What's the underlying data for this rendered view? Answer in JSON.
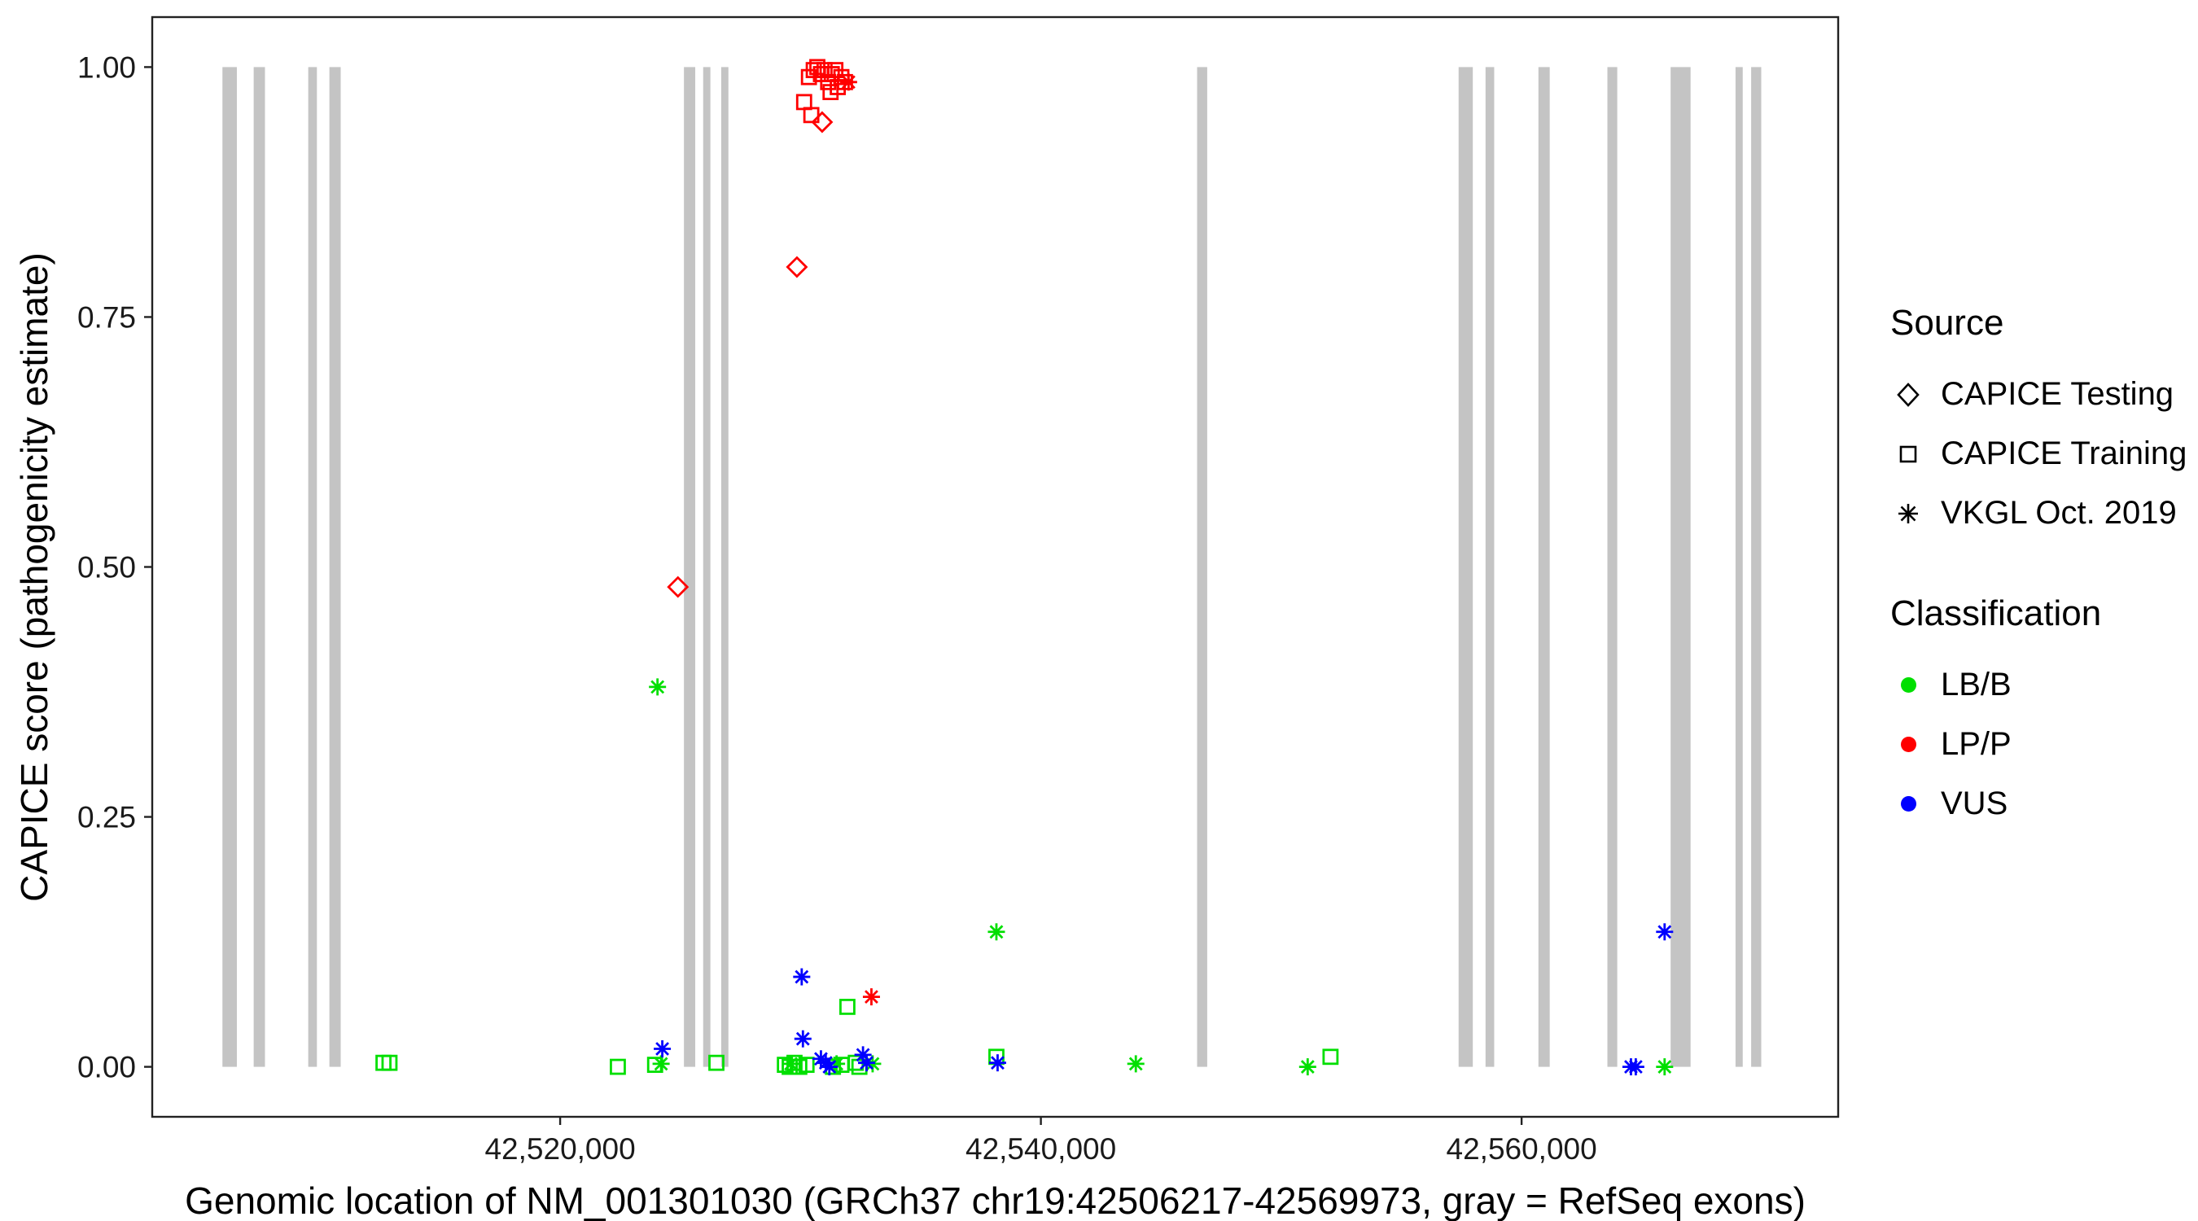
{
  "colors": {
    "lbb_green": "#00DF00",
    "lpp_red": "#FF0000",
    "vus_blue": "#0000FF",
    "exon_gray": "#C4C4C4",
    "panel_border": "#222222",
    "text": "#000000"
  },
  "chart_data": {
    "type": "scatter",
    "title": "",
    "xlabel": "Genomic location of NM_001301030 (GRCh37 chr19:42506217-42569973, gray = RefSeq exons)",
    "ylabel": "CAPICE score (pathogenicity estimate)",
    "x_domain": [
      42503029,
      42573171
    ],
    "y_domain": [
      -0.05,
      1.05
    ],
    "grid": "off",
    "x_ticks": [
      {
        "value": 42520000,
        "label": "42,520,000"
      },
      {
        "value": 42540000,
        "label": "42,540,000"
      },
      {
        "value": 42560000,
        "label": "42,560,000"
      }
    ],
    "y_ticks": [
      {
        "value": 0.0,
        "label": "0.00"
      },
      {
        "value": 0.25,
        "label": "0.25"
      },
      {
        "value": 0.5,
        "label": "0.50"
      },
      {
        "value": 0.75,
        "label": "0.75"
      },
      {
        "value": 1.0,
        "label": "1.00"
      }
    ],
    "exon_color": "#C4C4C4",
    "exons": [
      [
        42505950,
        42506550
      ],
      [
        42507250,
        42507720
      ],
      [
        42509520,
        42509880
      ],
      [
        42510400,
        42510870
      ],
      [
        42525150,
        42525620
      ],
      [
        42525950,
        42526250
      ],
      [
        42526700,
        42527000
      ],
      [
        42546500,
        42546920
      ],
      [
        42557380,
        42557970
      ],
      [
        42558500,
        42558860
      ],
      [
        42560700,
        42561170
      ],
      [
        42563570,
        42563980
      ],
      [
        42566200,
        42567030
      ],
      [
        42568900,
        42569200
      ],
      [
        42569550,
        42569970
      ]
    ],
    "series": [
      {
        "name": "CAPICE Testing / LP/P",
        "source": "CAPICE Testing",
        "classification": "LP/P",
        "symbol": "diamond",
        "color": "#FF0000",
        "points": [
          [
            42530900,
            0.945
          ],
          [
            42529850,
            0.8
          ],
          [
            42524900,
            0.48
          ]
        ]
      },
      {
        "name": "CAPICE Training / LP/P",
        "source": "CAPICE Training",
        "classification": "LP/P",
        "symbol": "square",
        "color": "#FF0000",
        "points": [
          [
            42530350,
            0.99
          ],
          [
            42530550,
            0.997
          ],
          [
            42530700,
            1.0
          ],
          [
            42530850,
            0.993
          ],
          [
            42531000,
            0.997
          ],
          [
            42531150,
            0.985
          ],
          [
            42531300,
            0.993
          ],
          [
            42531450,
            0.997
          ],
          [
            42531550,
            0.98
          ],
          [
            42531700,
            0.99
          ],
          [
            42531850,
            0.985
          ],
          [
            42531250,
            0.975
          ],
          [
            42530150,
            0.965
          ],
          [
            42530450,
            0.952
          ]
        ]
      },
      {
        "name": "VKGL Oct. 2019 / LP/P",
        "source": "VKGL Oct. 2019",
        "classification": "LP/P",
        "symbol": "asterisk",
        "color": "#FF0000",
        "points": [
          [
            42532000,
            0.985
          ],
          [
            42532950,
            0.07
          ]
        ]
      },
      {
        "name": "CAPICE Training / LB/B",
        "source": "CAPICE Training",
        "classification": "LB/B",
        "symbol": "square",
        "color": "#00DF00",
        "points": [
          [
            42512650,
            0.004
          ],
          [
            42512900,
            0.004
          ],
          [
            42522400,
            0.0
          ],
          [
            42523950,
            0.002
          ],
          [
            42526500,
            0.004
          ],
          [
            42529350,
            0.002
          ],
          [
            42529550,
            0.0
          ],
          [
            42529750,
            0.004
          ],
          [
            42529950,
            0.0
          ],
          [
            42530250,
            0.002
          ],
          [
            42531350,
            0.0
          ],
          [
            42531700,
            0.002
          ],
          [
            42531950,
            0.06
          ],
          [
            42532300,
            0.004
          ],
          [
            42532450,
            0.0
          ],
          [
            42538150,
            0.01
          ],
          [
            42552050,
            0.01
          ]
        ]
      },
      {
        "name": "VKGL Oct. 2019 / LB/B",
        "source": "VKGL Oct. 2019",
        "classification": "LB/B",
        "symbol": "asterisk",
        "color": "#00DF00",
        "points": [
          [
            42524050,
            0.38
          ],
          [
            42538150,
            0.135
          ],
          [
            42524200,
            0.003
          ],
          [
            42529600,
            0.003
          ],
          [
            42531500,
            0.003
          ],
          [
            42533000,
            0.003
          ],
          [
            42543950,
            0.003
          ],
          [
            42551100,
            0.0
          ],
          [
            42565950,
            0.0
          ]
        ]
      },
      {
        "name": "VKGL Oct. 2019 / VUS",
        "source": "VKGL Oct. 2019",
        "classification": "VUS",
        "symbol": "asterisk",
        "color": "#0000FF",
        "points": [
          [
            42530050,
            0.09
          ],
          [
            42565950,
            0.135
          ],
          [
            42524250,
            0.018
          ],
          [
            42530100,
            0.028
          ],
          [
            42530850,
            0.008
          ],
          [
            42531050,
            0.004
          ],
          [
            42531200,
            0.0
          ],
          [
            42532600,
            0.012
          ],
          [
            42532750,
            0.004
          ],
          [
            42538200,
            0.004
          ],
          [
            42564550,
            0.0
          ],
          [
            42564750,
            0.0
          ]
        ]
      }
    ],
    "legend": {
      "position": "right",
      "source_title": "Source",
      "source_items": [
        {
          "label": "CAPICE Testing",
          "symbol": "diamond"
        },
        {
          "label": "CAPICE Training",
          "symbol": "square"
        },
        {
          "label": "VKGL Oct. 2019",
          "symbol": "asterisk"
        }
      ],
      "class_title": "Classification",
      "class_items": [
        {
          "label": "LB/B",
          "color": "#00DF00"
        },
        {
          "label": "LP/P",
          "color": "#FF0000"
        },
        {
          "label": "VUS",
          "color": "#0000FF"
        }
      ]
    }
  }
}
